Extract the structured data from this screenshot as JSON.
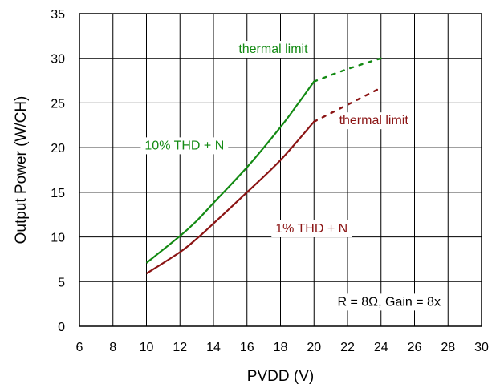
{
  "chart_data": {
    "type": "line",
    "title": "",
    "xlabel": "PVDD (V)",
    "ylabel": "Output Power (W/CH)",
    "xlim": [
      6,
      30
    ],
    "ylim": [
      0,
      35
    ],
    "xticks": [
      6,
      8,
      10,
      12,
      14,
      16,
      18,
      20,
      22,
      24,
      26,
      28,
      30
    ],
    "yticks": [
      0,
      5,
      10,
      15,
      20,
      25,
      30,
      35
    ],
    "grid": true,
    "series": [
      {
        "name": "10% THD + N",
        "color": "#138a13",
        "points": [
          [
            10,
            7.1
          ],
          [
            12,
            10.1
          ],
          [
            13,
            11.8
          ],
          [
            14,
            13.8
          ],
          [
            16,
            17.8
          ],
          [
            18,
            22.3
          ],
          [
            19,
            24.8
          ],
          [
            20,
            27.4
          ]
        ],
        "extrapolated": [
          [
            20,
            27.4
          ],
          [
            22,
            28.8
          ],
          [
            24,
            30.0
          ]
        ]
      },
      {
        "name": "1% THD + N",
        "color": "#8b1414",
        "points": [
          [
            10,
            5.9
          ],
          [
            12,
            8.3
          ],
          [
            13,
            9.8
          ],
          [
            14,
            11.5
          ],
          [
            16,
            15.0
          ],
          [
            18,
            18.6
          ],
          [
            20,
            22.9
          ]
        ],
        "extrapolated": [
          [
            20,
            22.9
          ],
          [
            22,
            24.8
          ],
          [
            24,
            26.7
          ]
        ]
      }
    ],
    "annotations": [
      {
        "text": "thermal limit",
        "color": "#138a13",
        "x": 15.5,
        "y": 30.6
      },
      {
        "text": "thermal limit",
        "color": "#8b1414",
        "x": 21.5,
        "y": 22.6
      },
      {
        "text": "10% THD + N",
        "color": "#138a13",
        "x": 9.9,
        "y": 19.8
      },
      {
        "text": "1% THD + N",
        "color": "#8b1414",
        "x": 17.7,
        "y": 10.5
      },
      {
        "text": "R = 8Ω, Gain = 8x",
        "color": "#000000",
        "x": 21.4,
        "y": 2.3
      }
    ]
  }
}
